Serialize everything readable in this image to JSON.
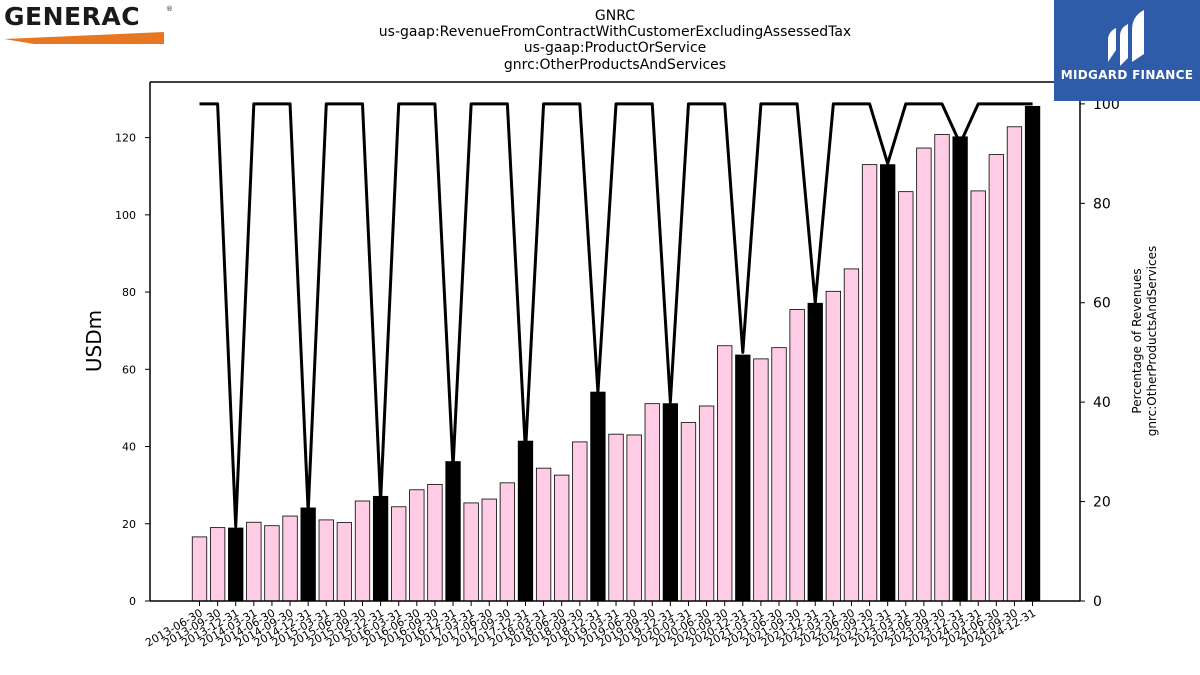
{
  "brand": {
    "company_logo_text": "GENERAC",
    "company_logo_reg": "®",
    "publisher_text": "MIDGARD FINANCE"
  },
  "colors": {
    "pink_bar": "#ffcce6",
    "black_bar": "#000000",
    "line": "#000000",
    "logo_orange": "#e87722",
    "publisher_bg": "#2f5ca8"
  },
  "chart_data": {
    "type": "bar",
    "title": [
      "GNRC",
      "us-gaap:RevenueFromContractWithCustomerExcludingAssessedTax",
      "us-gaap:ProductOrService",
      "gnrc:OtherProductsAndServices"
    ],
    "ylabel": "USDm",
    "y2label": [
      "Percentage of Revenues",
      "gnrc:OtherProductsAndServices"
    ],
    "ylim": [
      0,
      134.4
    ],
    "y2lim": [
      0,
      104.4
    ],
    "yticks": [
      0,
      20,
      40,
      60,
      80,
      100,
      120
    ],
    "y2ticks": [
      0,
      20,
      40,
      60,
      80,
      100
    ],
    "categories": [
      "2013-06-30",
      "2013-09-30",
      "2013-12-31",
      "2014-03-31",
      "2014-06-30",
      "2014-09-30",
      "2014-12-31",
      "2015-03-31",
      "2015-06-30",
      "2015-09-30",
      "2015-12-31",
      "2016-03-31",
      "2016-06-30",
      "2016-09-30",
      "2016-12-31",
      "2017-03-31",
      "2017-06-30",
      "2017-09-30",
      "2017-12-31",
      "2018-03-31",
      "2018-06-30",
      "2018-09-30",
      "2018-12-31",
      "2019-03-31",
      "2019-06-30",
      "2019-09-30",
      "2019-12-31",
      "2020-03-31",
      "2020-06-30",
      "2020-09-30",
      "2020-12-31",
      "2021-03-31",
      "2021-06-30",
      "2021-09-30",
      "2021-12-31",
      "2022-03-31",
      "2022-06-30",
      "2022-09-30",
      "2022-12-31",
      "2023-03-31",
      "2023-06-30",
      "2023-09-30",
      "2023-12-31",
      "2024-03-31",
      "2024-06-30",
      "2024-09-30",
      "2024-12-31"
    ],
    "series": [
      {
        "values": [
          16.6,
          19.0,
          18.9,
          20.4,
          19.5,
          22.0,
          24.1,
          21.0,
          20.3,
          25.9,
          27.1,
          24.4,
          28.8,
          30.2,
          36.1,
          25.4,
          26.4,
          30.6,
          41.4,
          34.4,
          32.6,
          41.2,
          54.1,
          43.2,
          43.0,
          51.1,
          51.1,
          46.2,
          50.5,
          66.1,
          63.7,
          62.7,
          65.6,
          75.5,
          77.1,
          80.2,
          86.0,
          113.0,
          113.0,
          106.0,
          117.3,
          120.8,
          120.2,
          106.2,
          115.6,
          122.8,
          128.1
        ],
        "annual": [
          false,
          false,
          true,
          false,
          false,
          false,
          true,
          false,
          false,
          false,
          true,
          false,
          false,
          false,
          true,
          false,
          false,
          false,
          true,
          false,
          false,
          false,
          true,
          false,
          false,
          false,
          true,
          false,
          false,
          false,
          true,
          false,
          false,
          false,
          true,
          false,
          false,
          false,
          true,
          false,
          false,
          false,
          true,
          false,
          false,
          false,
          true
        ]
      },
      {
        "axis": "right",
        "values": [
          100,
          100,
          15,
          100,
          100,
          100,
          18,
          100,
          100,
          100,
          20,
          100,
          100,
          100,
          27,
          100,
          100,
          100,
          30,
          100,
          100,
          100,
          42,
          100,
          100,
          100,
          40,
          100,
          100,
          100,
          50,
          100,
          100,
          100,
          60,
          100,
          100,
          100,
          88,
          100,
          100,
          100,
          92,
          100,
          100,
          100,
          100
        ]
      }
    ]
  }
}
